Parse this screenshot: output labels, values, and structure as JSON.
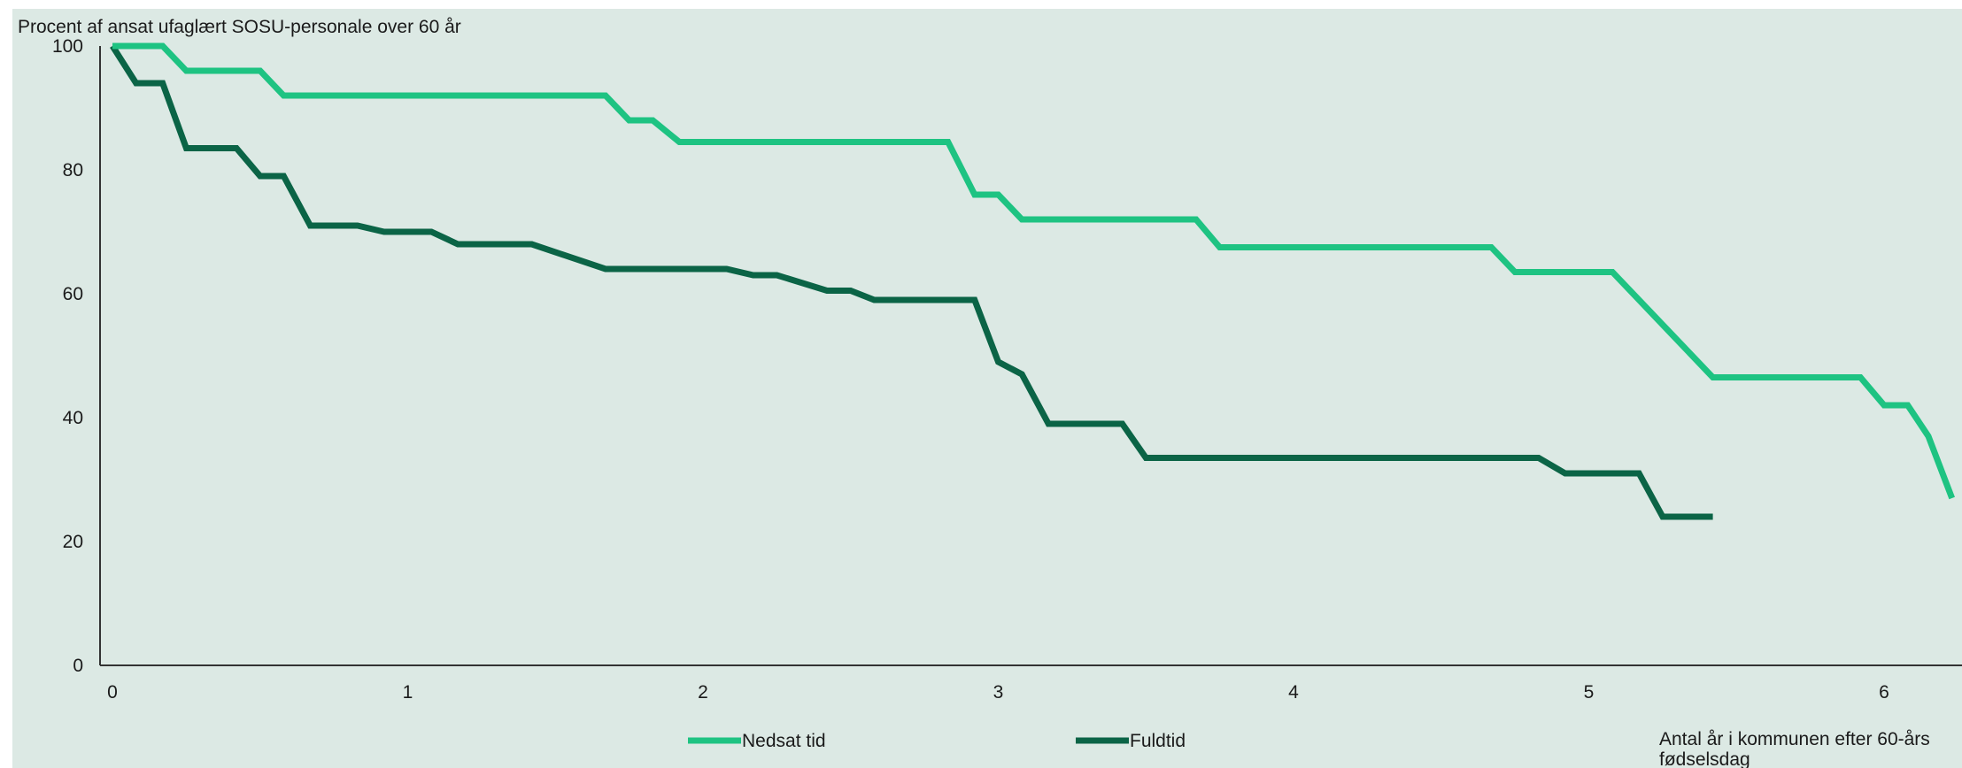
{
  "figure_title": "",
  "chart_data": {
    "type": "line",
    "ylabel": "Procent af ansat ufaglært SOSU-personale over 60 år",
    "xlabel": "Antal år i kommunen efter 60-års fødselsdag",
    "xlim": [
      0,
      6.15
    ],
    "ylim": [
      0,
      100
    ],
    "xticks": [
      "0",
      "1",
      "2",
      "3",
      "4",
      "5",
      "6"
    ],
    "yticks": [
      "0",
      "20",
      "40",
      "60",
      "80",
      "100"
    ],
    "grid": false,
    "legend": "bottom",
    "series": [
      {
        "name": "Nedsat tid",
        "color": "#1ec382",
        "x": [
          0,
          0.17,
          0.25,
          0.5,
          0.58,
          1.67,
          1.75,
          1.83,
          1.92,
          2.83,
          2.92,
          3.0,
          3.08,
          3.67,
          3.75,
          4.67,
          4.75,
          5.08,
          5.42,
          5.92,
          6.0,
          6.08,
          6.15,
          6.23
        ],
        "y": [
          100,
          100,
          96,
          96,
          92,
          92,
          88,
          88,
          84.5,
          84.5,
          76,
          76,
          72,
          72,
          67.5,
          67.5,
          63.5,
          63.5,
          46.5,
          46.5,
          42,
          42,
          37,
          27
        ]
      },
      {
        "name": "Fuldtid",
        "color": "#0b6446",
        "x": [
          0,
          0.08,
          0.17,
          0.25,
          0.42,
          0.5,
          0.58,
          0.67,
          0.83,
          0.92,
          1.08,
          1.17,
          1.42,
          1.67,
          2.08,
          2.17,
          2.25,
          2.42,
          2.5,
          2.58,
          2.92,
          3.0,
          3.08,
          3.17,
          3.42,
          3.5,
          4.83,
          4.92,
          5.17,
          5.25,
          5.42
        ],
        "y": [
          100,
          94,
          94,
          83.5,
          83.5,
          79,
          79,
          71,
          71,
          70,
          70,
          68,
          68,
          64,
          64,
          63,
          63,
          60.5,
          60.5,
          59,
          59,
          49,
          47,
          39,
          39,
          33.5,
          33.5,
          31,
          31,
          24,
          24
        ]
      }
    ]
  }
}
